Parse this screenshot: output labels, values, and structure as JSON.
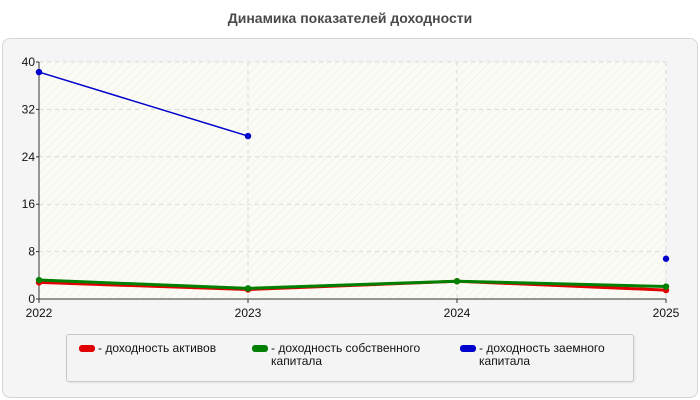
{
  "title": "Динамика показателей доходности",
  "colors": {
    "assets": "#e00000",
    "equity": "#008000",
    "borrowed": "#0000cc"
  },
  "chart_data": {
    "type": "line",
    "title": "Динамика показателей доходности",
    "xlabel": "",
    "ylabel": "",
    "x": [
      "2022",
      "2023",
      "2024",
      "2025"
    ],
    "ylim": [
      0,
      40
    ],
    "yticks": [
      "0",
      "8",
      "16",
      "24",
      "32",
      "40"
    ],
    "grid": true,
    "legend_position": "bottom",
    "series": [
      {
        "name": "- доходность активов",
        "values": [
          2.8,
          1.6,
          3.0,
          1.5
        ]
      },
      {
        "name": "- доходность собственного капитала",
        "values": [
          3.2,
          1.8,
          3.0,
          2.1
        ]
      },
      {
        "name": "- доходность заемного капитала",
        "values": [
          38.3,
          27.5,
          null,
          6.8
        ]
      }
    ]
  },
  "legend": [
    {
      "label": "- доходность активов",
      "color_key": "assets"
    },
    {
      "label": "- доходность собственного капитала",
      "color_key": "equity"
    },
    {
      "label": "- доходность заемного капитала",
      "color_key": "borrowed"
    }
  ]
}
